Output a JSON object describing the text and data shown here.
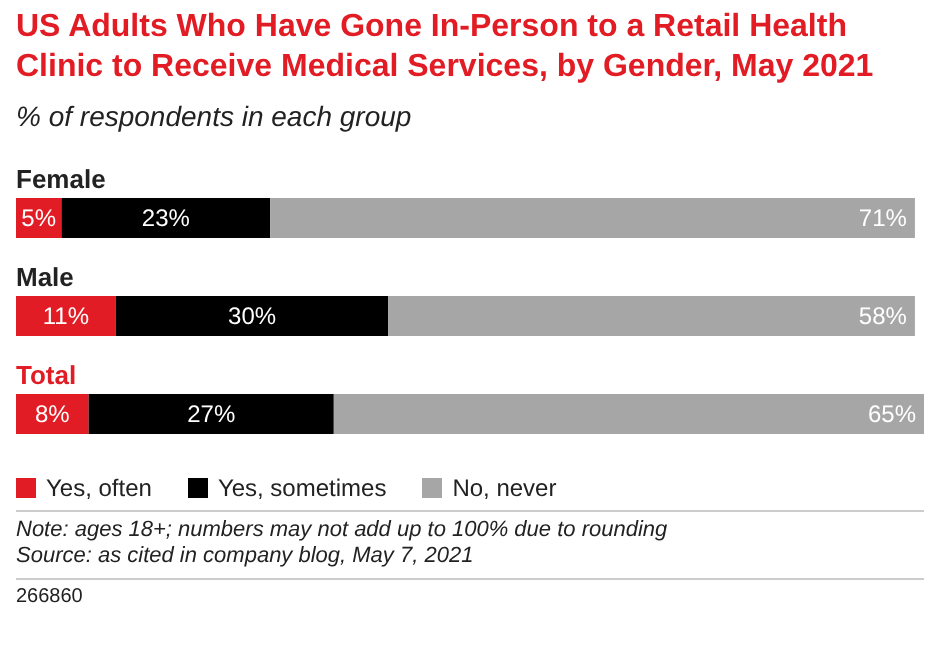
{
  "chart_data": {
    "type": "bar",
    "orientation": "horizontal",
    "stacked": true,
    "title": "US Adults Who Have Gone In-Person to a Retail Health Clinic to Receive Medical Services, by Gender, May 2021",
    "subtitle": "% of respondents in each group",
    "categories": [
      "Female",
      "Male",
      "Total"
    ],
    "series": [
      {
        "name": "Yes, often",
        "color": "#e21c24",
        "values": [
          5,
          11,
          8
        ],
        "value_labels": [
          "5%",
          "11%",
          "8%"
        ]
      },
      {
        "name": "Yes, sometimes",
        "color": "#000000",
        "values": [
          23,
          30,
          27
        ],
        "value_labels": [
          "23%",
          "30%",
          "27%"
        ]
      },
      {
        "name": "No, never",
        "color": "#a6a6a6",
        "values": [
          71,
          58,
          65
        ],
        "value_labels": [
          "71%",
          "58%",
          "65%"
        ]
      }
    ],
    "legend": "bottom",
    "annotations": [
      "Note: ages 18+; numbers may not add up to 100% due to rounding",
      "Source: as cited in company blog, May 7, 2021",
      "266860"
    ]
  }
}
